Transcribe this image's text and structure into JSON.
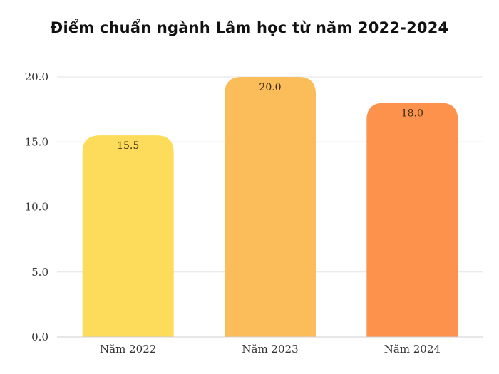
{
  "chart_data": {
    "type": "bar",
    "title": "Điểm chuẩn ngành Lâm học từ năm 2022-2024",
    "xlabel": "",
    "ylabel": "",
    "categories": [
      "Năm 2022",
      "Năm 2023",
      "Năm 2024"
    ],
    "values": [
      15.5,
      20.0,
      18.0
    ],
    "value_labels": [
      "15.5",
      "20.0",
      "18.0"
    ],
    "bar_colors": [
      "#FCDC5A",
      "#FBBD5A",
      "#FC924C"
    ],
    "ylim": [
      0,
      20
    ],
    "yticks": [
      0,
      5,
      10,
      15,
      20
    ],
    "ytick_labels": [
      "0.0",
      "5.0",
      "10.0",
      "15.0",
      "20.0"
    ],
    "grid": true,
    "gridline_color": "#e3e3e3",
    "legend": "none"
  }
}
